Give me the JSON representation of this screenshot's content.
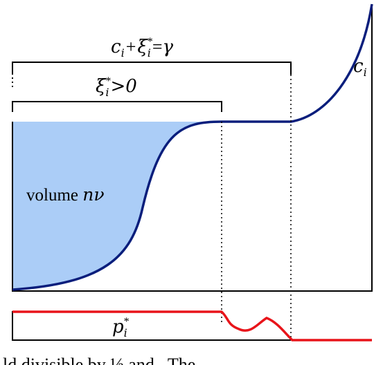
{
  "labels": {
    "bracket_top_c": "c",
    "bracket_top_c_sub": "i",
    "bracket_top_plus": "+",
    "bracket_top_xi": "ξ",
    "bracket_top_xi_sup": "*",
    "bracket_top_xi_sub": "i",
    "bracket_top_eq": "=",
    "bracket_top_gamma": "γ",
    "bracket_mid_xi": "ξ",
    "bracket_mid_xi_sup": "*",
    "bracket_mid_xi_sub": "i",
    "bracket_mid_rest": ">0",
    "curve_c": "c",
    "curve_c_sub": "i",
    "volume_word": "volume ",
    "volume_n": "n",
    "volume_nu": "ν",
    "p_p": "p",
    "p_sup": "*",
    "p_sub": "i",
    "bottom_cut_text": "ld                    divisible by ½ and . The"
  },
  "colors": {
    "fill": "#abcdf7",
    "curve": "#0a1e7c",
    "price": "#e8141a",
    "frame": "#000000"
  }
}
